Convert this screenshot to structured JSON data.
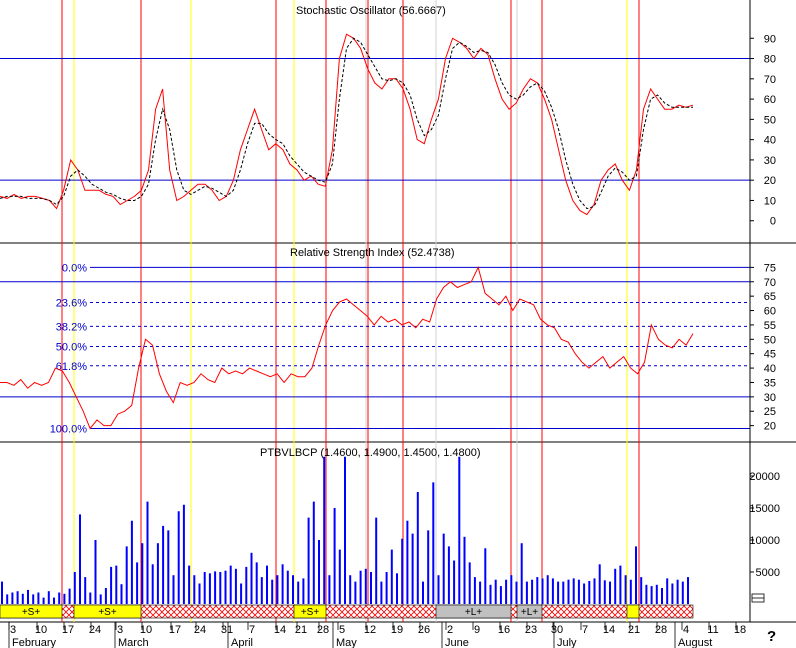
{
  "chart_data": [
    {
      "type": "line",
      "title": "Stochastic Oscillator (56.6667)",
      "ylim": [
        -10,
        100
      ],
      "yticks": [
        0,
        10,
        20,
        30,
        40,
        50,
        60,
        70,
        80,
        90
      ],
      "reference_lines": [
        20,
        80
      ],
      "series": [
        {
          "style": "solid-red",
          "values": [
            12,
            11,
            13,
            11,
            12,
            12,
            11,
            10,
            6,
            15,
            30,
            25,
            15,
            15,
            15,
            13,
            12,
            8,
            10,
            12,
            15,
            25,
            55,
            65,
            25,
            10,
            12,
            15,
            18,
            18,
            15,
            10,
            12,
            20,
            35,
            45,
            55,
            45,
            35,
            38,
            35,
            28,
            25,
            20,
            22,
            18,
            17,
            35,
            80,
            92,
            90,
            85,
            75,
            68,
            65,
            70,
            70,
            65,
            55,
            40,
            38,
            50,
            60,
            80,
            90,
            88,
            85,
            80,
            85,
            82,
            70,
            60,
            55,
            58,
            65,
            70,
            68,
            60,
            50,
            35,
            20,
            10,
            5,
            3,
            8,
            20,
            25,
            28,
            20,
            15,
            25,
            55,
            65,
            60,
            55,
            55,
            57,
            56,
            57
          ]
        },
        {
          "style": "dashed-black",
          "values": [
            11,
            12,
            12,
            12,
            11,
            11,
            11,
            10,
            8,
            12,
            22,
            25,
            22,
            18,
            16,
            14,
            13,
            11,
            10,
            10,
            12,
            18,
            40,
            55,
            45,
            25,
            15,
            13,
            15,
            17,
            16,
            14,
            12,
            15,
            25,
            38,
            48,
            48,
            43,
            40,
            38,
            32,
            28,
            24,
            22,
            20,
            19,
            28,
            60,
            85,
            90,
            88,
            82,
            76,
            70,
            69,
            70,
            68,
            62,
            50,
            42,
            45,
            52,
            70,
            85,
            88,
            86,
            83,
            84,
            83,
            77,
            68,
            62,
            60,
            62,
            66,
            68,
            64,
            56,
            45,
            30,
            18,
            10,
            6,
            7,
            14,
            22,
            26,
            24,
            20,
            22,
            45,
            60,
            62,
            58,
            56,
            56,
            56,
            56
          ]
        }
      ]
    },
    {
      "type": "line",
      "title": "Relative Strength Index (52.4738)",
      "ylim": [
        15,
        80
      ],
      "yticks": [
        20,
        25,
        30,
        35,
        40,
        45,
        50,
        55,
        60,
        65,
        70,
        75
      ],
      "reference_lines": [
        30,
        70
      ],
      "fibonacci_levels": [
        {
          "label": "0.0%",
          "value": 75
        },
        {
          "label": "23.6%",
          "value": 62.8
        },
        {
          "label": "38.2%",
          "value": 54.5
        },
        {
          "label": "50.0%",
          "value": 47.5
        },
        {
          "label": "61.8%",
          "value": 40.8
        },
        {
          "label": "100.0%",
          "value": 19
        }
      ],
      "series": [
        {
          "style": "solid-red",
          "values": [
            35,
            35,
            34,
            36,
            33,
            35,
            34,
            35,
            40,
            39,
            35,
            30,
            25,
            19,
            22,
            20,
            20,
            24,
            25,
            27,
            40,
            50,
            48,
            38,
            32,
            28,
            35,
            34,
            35,
            38,
            36,
            35,
            40,
            38,
            39,
            38,
            40,
            39,
            38,
            37,
            38,
            35,
            38,
            37,
            37,
            40,
            48,
            55,
            60,
            63,
            64,
            62,
            60,
            58,
            55,
            58,
            56,
            57,
            55,
            56,
            54,
            57,
            56,
            64,
            68,
            70,
            68,
            69,
            70,
            75,
            66,
            64,
            62,
            65,
            60,
            64,
            63,
            62,
            57,
            55,
            54,
            50,
            49,
            45,
            42,
            40,
            42,
            44,
            40,
            42,
            44,
            40,
            38,
            42,
            55,
            50,
            48,
            47,
            50,
            48,
            52
          ]
        }
      ]
    },
    {
      "type": "bar",
      "title": "PTBVLBCP (1.4600, 1.4900, 1.4500, 1.4800)",
      "ylim": [
        0,
        25000
      ],
      "yticks": [
        5000,
        10000,
        15000,
        20000
      ],
      "values": [
        3500,
        1500,
        1800,
        2000,
        1600,
        2200,
        1500,
        1800,
        1000,
        2000,
        1000,
        1800,
        1600,
        2400,
        5000,
        14000,
        4200,
        1800,
        10000,
        1500,
        2500,
        5800,
        6000,
        3100,
        9000,
        13000,
        6500,
        9500,
        16000,
        6200,
        9500,
        12200,
        11500,
        4500,
        14500,
        15500,
        6000,
        4500,
        3200,
        5000,
        4800,
        5100,
        5000,
        5200,
        6000,
        5500,
        3200,
        5800,
        8000,
        6500,
        4200,
        6000,
        3800,
        4500,
        6200,
        5200,
        4500,
        3500,
        4000,
        13500,
        16000,
        10000,
        23000,
        4500,
        15000,
        8500,
        23000,
        4500,
        3500,
        5200,
        5500,
        5000,
        13500,
        3500,
        5000,
        8500,
        4800,
        10200,
        13000,
        11000,
        17500,
        3500,
        11500,
        19000,
        4500,
        11000,
        9000,
        6800,
        23000,
        10500,
        6500,
        4200,
        3500,
        8700,
        3000,
        3800,
        2800,
        3800,
        4500,
        3500,
        9500,
        3500,
        3800,
        4200,
        4000,
        4500,
        4000,
        3500,
        3500,
        3800,
        4000,
        3800,
        3200,
        3600,
        4000,
        6200,
        3700,
        3500,
        5500,
        6000,
        4500,
        3800,
        9000,
        4200,
        3000,
        2800,
        3000,
        2500,
        4000,
        3200,
        3800,
        3500,
        4200
      ]
    }
  ],
  "timeline": {
    "day_labels": [
      "3",
      "10",
      "17",
      "24",
      "3",
      "10",
      "17",
      "24",
      "31",
      "7",
      "14",
      "21",
      "28",
      "5",
      "12",
      "19",
      "26",
      "2",
      "9",
      "16",
      "23",
      "30",
      "7",
      "14",
      "21",
      "28",
      "4",
      "11",
      "18"
    ],
    "month_labels": [
      "February",
      "March",
      "April",
      "May",
      "June",
      "July",
      "August"
    ],
    "corner_mark": "?"
  },
  "signals": [
    {
      "label": "+S+",
      "kind": "sell"
    },
    {
      "label": "+S+",
      "kind": "sell"
    },
    {
      "label": "+S+",
      "kind": "sell"
    },
    {
      "label": "+L+",
      "kind": "buy"
    },
    {
      "label": "+L+",
      "kind": "buy"
    }
  ],
  "colors": {
    "price_bar": "#0000ff",
    "stoch_line": "#ff0000",
    "stoch_signal": "#000000",
    "red_vertical": "#ff0000",
    "yellow_vertical": "#ffff00",
    "blue_level": "#0000cc",
    "signal_yellow": "#ffff00",
    "signal_grey": "#c0c0c0",
    "hatch": "#ff0000"
  }
}
